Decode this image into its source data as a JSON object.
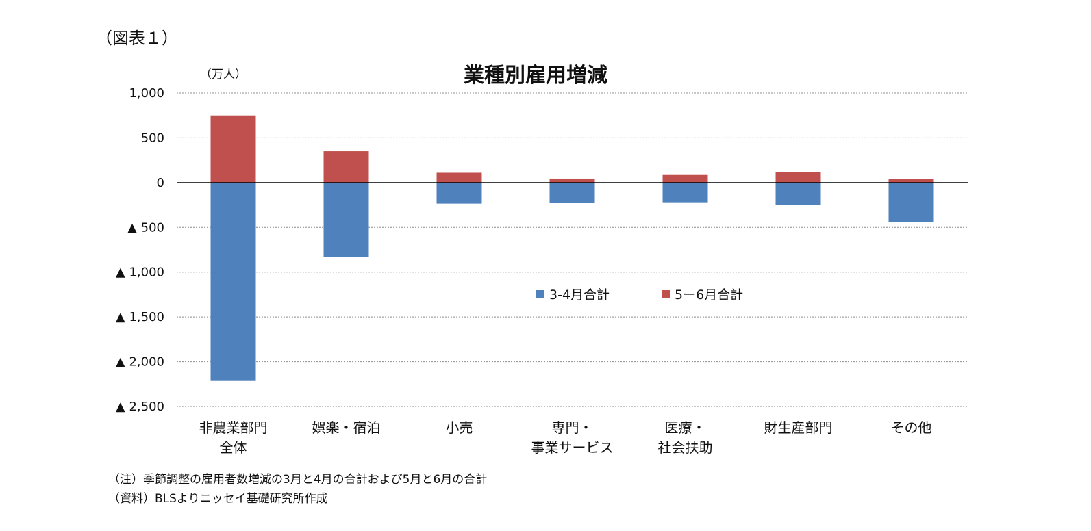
{
  "figure_label": "（図表１）",
  "notes": [
    "（注）季節調整の雇用者数増減の3月と4月の合計および5月と6月の合計",
    "（資料）BLSよりニッセイ基礎研究所作成"
  ],
  "chart_data": {
    "type": "bar",
    "stacked": true,
    "title": "業種別雇用増減",
    "unit_label": "（万人）",
    "categories": [
      [
        "非農業部門",
        "全体"
      ],
      [
        "娯楽・宿泊"
      ],
      [
        "小売"
      ],
      [
        "専門・",
        "事業サービス"
      ],
      [
        "医療・",
        "社会扶助"
      ],
      [
        "財生産部門"
      ],
      [
        "その他"
      ]
    ],
    "series": [
      {
        "name": "3-4月合計",
        "color": "#4f81bd",
        "values": [
          -2215,
          -830,
          -235,
          -225,
          -220,
          -250,
          -440
        ]
      },
      {
        "name": "5ー6月合計",
        "color": "#c0504d",
        "values": [
          750,
          350,
          110,
          45,
          85,
          120,
          40
        ]
      }
    ],
    "ylim": [
      -2500,
      1000
    ],
    "yticks": [
      1000,
      500,
      0,
      -500,
      -1000,
      -1500,
      -2000,
      -2500
    ],
    "ytick_labels": [
      "1,000",
      "500",
      "0",
      "▲ 500",
      "▲ 1,000",
      "▲ 1,500",
      "▲ 2,000",
      "▲ 2,500"
    ],
    "grid": true,
    "legend_position": "center"
  }
}
